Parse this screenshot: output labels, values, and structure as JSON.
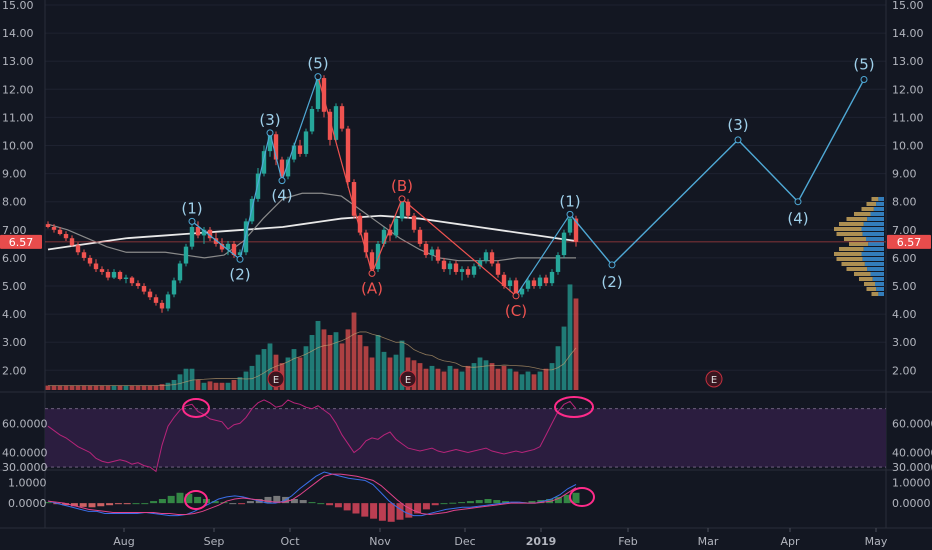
{
  "chart_data": {
    "type": "candlestick",
    "last_price": "6.57",
    "price_axis": {
      "ticks": [
        "15.00",
        "14.00",
        "13.00",
        "12.00",
        "11.00",
        "10.00",
        "9.00",
        "8.00",
        "7.00",
        "6.00",
        "5.00",
        "4.00",
        "3.00",
        "2.00"
      ],
      "range": [
        1.2,
        15
      ]
    },
    "time_axis": {
      "labels": [
        "Aug",
        "Sep",
        "Oct",
        "Nov",
        "Dec",
        "2019",
        "Feb",
        "Mar",
        "Apr",
        "May"
      ]
    },
    "candles": [
      {
        "o": 7.2,
        "h": 7.3,
        "l": 7.05,
        "c": 7.1
      },
      {
        "o": 7.1,
        "h": 7.2,
        "l": 6.9,
        "c": 7.0
      },
      {
        "o": 7.0,
        "h": 7.1,
        "l": 6.8,
        "c": 6.85
      },
      {
        "o": 6.85,
        "h": 6.95,
        "l": 6.6,
        "c": 6.7
      },
      {
        "o": 6.7,
        "h": 6.8,
        "l": 6.4,
        "c": 6.45
      },
      {
        "o": 6.45,
        "h": 6.55,
        "l": 6.1,
        "c": 6.2
      },
      {
        "o": 6.2,
        "h": 6.3,
        "l": 5.9,
        "c": 6.0
      },
      {
        "o": 6.0,
        "h": 6.1,
        "l": 5.7,
        "c": 5.8
      },
      {
        "o": 5.8,
        "h": 5.95,
        "l": 5.5,
        "c": 5.6
      },
      {
        "o": 5.6,
        "h": 5.7,
        "l": 5.4,
        "c": 5.5
      },
      {
        "o": 5.5,
        "h": 5.6,
        "l": 5.2,
        "c": 5.3
      },
      {
        "o": 5.3,
        "h": 5.6,
        "l": 5.25,
        "c": 5.5
      },
      {
        "o": 5.5,
        "h": 5.55,
        "l": 5.2,
        "c": 5.25
      },
      {
        "o": 5.25,
        "h": 5.4,
        "l": 5.1,
        "c": 5.3
      },
      {
        "o": 5.3,
        "h": 5.35,
        "l": 5.0,
        "c": 5.1
      },
      {
        "o": 5.1,
        "h": 5.2,
        "l": 4.9,
        "c": 5.0
      },
      {
        "o": 5.0,
        "h": 5.1,
        "l": 4.7,
        "c": 4.8
      },
      {
        "o": 4.8,
        "h": 4.9,
        "l": 4.5,
        "c": 4.6
      },
      {
        "o": 4.6,
        "h": 4.7,
        "l": 4.3,
        "c": 4.4
      },
      {
        "o": 4.4,
        "h": 4.5,
        "l": 4.05,
        "c": 4.2
      },
      {
        "o": 4.2,
        "h": 4.8,
        "l": 4.1,
        "c": 4.7
      },
      {
        "o": 4.7,
        "h": 5.3,
        "l": 4.6,
        "c": 5.2
      },
      {
        "o": 5.2,
        "h": 5.9,
        "l": 5.1,
        "c": 5.8
      },
      {
        "o": 5.8,
        "h": 6.5,
        "l": 5.7,
        "c": 6.4
      },
      {
        "o": 6.4,
        "h": 7.2,
        "l": 6.3,
        "c": 7.1
      },
      {
        "o": 7.1,
        "h": 7.3,
        "l": 6.7,
        "c": 6.8
      },
      {
        "o": 6.8,
        "h": 7.1,
        "l": 6.5,
        "c": 7.0
      },
      {
        "o": 7.0,
        "h": 7.1,
        "l": 6.6,
        "c": 6.7
      },
      {
        "o": 6.7,
        "h": 6.9,
        "l": 6.4,
        "c": 6.5
      },
      {
        "o": 6.5,
        "h": 6.7,
        "l": 6.2,
        "c": 6.3
      },
      {
        "o": 6.3,
        "h": 6.6,
        "l": 6.1,
        "c": 6.5
      },
      {
        "o": 6.5,
        "h": 6.6,
        "l": 6.0,
        "c": 6.1
      },
      {
        "o": 6.1,
        "h": 6.3,
        "l": 5.9,
        "c": 6.2
      },
      {
        "o": 6.2,
        "h": 7.4,
        "l": 6.1,
        "c": 7.3
      },
      {
        "o": 7.3,
        "h": 8.2,
        "l": 7.2,
        "c": 8.1
      },
      {
        "o": 8.1,
        "h": 9.2,
        "l": 8.0,
        "c": 9.0
      },
      {
        "o": 9.0,
        "h": 10.0,
        "l": 8.9,
        "c": 9.8
      },
      {
        "o": 9.8,
        "h": 10.5,
        "l": 9.6,
        "c": 10.4
      },
      {
        "o": 10.4,
        "h": 10.5,
        "l": 9.3,
        "c": 9.5
      },
      {
        "o": 9.5,
        "h": 9.6,
        "l": 8.7,
        "c": 8.9
      },
      {
        "o": 8.9,
        "h": 9.6,
        "l": 8.8,
        "c": 9.5
      },
      {
        "o": 9.5,
        "h": 10.1,
        "l": 9.4,
        "c": 10.0
      },
      {
        "o": 10.0,
        "h": 10.2,
        "l": 9.6,
        "c": 9.7
      },
      {
        "o": 9.7,
        "h": 10.6,
        "l": 9.6,
        "c": 10.5
      },
      {
        "o": 10.5,
        "h": 11.4,
        "l": 10.4,
        "c": 11.3
      },
      {
        "o": 11.3,
        "h": 12.5,
        "l": 11.2,
        "c": 12.4
      },
      {
        "o": 12.4,
        "h": 12.5,
        "l": 11.0,
        "c": 11.2
      },
      {
        "o": 11.2,
        "h": 11.3,
        "l": 10.0,
        "c": 10.2
      },
      {
        "o": 10.2,
        "h": 11.5,
        "l": 10.1,
        "c": 11.4
      },
      {
        "o": 11.4,
        "h": 11.5,
        "l": 10.5,
        "c": 10.6
      },
      {
        "o": 10.6,
        "h": 10.7,
        "l": 8.5,
        "c": 8.7
      },
      {
        "o": 8.7,
        "h": 8.8,
        "l": 7.4,
        "c": 7.5
      },
      {
        "o": 7.5,
        "h": 7.6,
        "l": 6.8,
        "c": 6.9
      },
      {
        "o": 6.9,
        "h": 7.0,
        "l": 6.0,
        "c": 6.2
      },
      {
        "o": 6.2,
        "h": 6.3,
        "l": 5.4,
        "c": 5.6
      },
      {
        "o": 5.6,
        "h": 6.6,
        "l": 5.5,
        "c": 6.5
      },
      {
        "o": 6.5,
        "h": 7.1,
        "l": 6.4,
        "c": 7.0
      },
      {
        "o": 7.0,
        "h": 7.2,
        "l": 6.6,
        "c": 6.8
      },
      {
        "o": 6.8,
        "h": 7.5,
        "l": 6.7,
        "c": 7.4
      },
      {
        "o": 7.4,
        "h": 8.1,
        "l": 7.3,
        "c": 8.0
      },
      {
        "o": 8.0,
        "h": 8.1,
        "l": 7.4,
        "c": 7.5
      },
      {
        "o": 7.5,
        "h": 7.6,
        "l": 6.9,
        "c": 7.0
      },
      {
        "o": 7.0,
        "h": 7.1,
        "l": 6.4,
        "c": 6.5
      },
      {
        "o": 6.5,
        "h": 6.6,
        "l": 6.0,
        "c": 6.1
      },
      {
        "o": 6.1,
        "h": 6.4,
        "l": 5.9,
        "c": 6.3
      },
      {
        "o": 6.3,
        "h": 6.4,
        "l": 5.8,
        "c": 5.9
      },
      {
        "o": 5.9,
        "h": 6.0,
        "l": 5.5,
        "c": 5.6
      },
      {
        "o": 5.6,
        "h": 5.9,
        "l": 5.4,
        "c": 5.8
      },
      {
        "o": 5.8,
        "h": 5.9,
        "l": 5.4,
        "c": 5.5
      },
      {
        "o": 5.5,
        "h": 5.7,
        "l": 5.2,
        "c": 5.6
      },
      {
        "o": 5.6,
        "h": 5.7,
        "l": 5.3,
        "c": 5.4
      },
      {
        "o": 5.4,
        "h": 5.8,
        "l": 5.3,
        "c": 5.7
      },
      {
        "o": 5.7,
        "h": 6.0,
        "l": 5.6,
        "c": 5.9
      },
      {
        "o": 5.9,
        "h": 6.3,
        "l": 5.8,
        "c": 6.2
      },
      {
        "o": 6.2,
        "h": 6.3,
        "l": 5.7,
        "c": 5.8
      },
      {
        "o": 5.8,
        "h": 5.9,
        "l": 5.3,
        "c": 5.4
      },
      {
        "o": 5.4,
        "h": 5.5,
        "l": 4.9,
        "c": 5.0
      },
      {
        "o": 5.0,
        "h": 5.3,
        "l": 4.8,
        "c": 5.2
      },
      {
        "o": 5.2,
        "h": 5.3,
        "l": 4.6,
        "c": 4.7
      },
      {
        "o": 4.7,
        "h": 5.0,
        "l": 4.6,
        "c": 4.9
      },
      {
        "o": 4.9,
        "h": 5.3,
        "l": 4.8,
        "c": 5.2
      },
      {
        "o": 5.2,
        "h": 5.3,
        "l": 4.9,
        "c": 5.0
      },
      {
        "o": 5.0,
        "h": 5.4,
        "l": 4.9,
        "c": 5.3
      },
      {
        "o": 5.3,
        "h": 5.4,
        "l": 5.0,
        "c": 5.1
      },
      {
        "o": 5.1,
        "h": 5.6,
        "l": 5.0,
        "c": 5.5
      },
      {
        "o": 5.5,
        "h": 6.2,
        "l": 5.4,
        "c": 6.1
      },
      {
        "o": 6.1,
        "h": 7.0,
        "l": 6.0,
        "c": 6.9
      },
      {
        "o": 6.9,
        "h": 7.6,
        "l": 6.8,
        "c": 7.4
      },
      {
        "o": 7.4,
        "h": 7.5,
        "l": 6.4,
        "c": 6.57
      }
    ],
    "volume": [
      1,
      1,
      1,
      1,
      1,
      1,
      1,
      1,
      1,
      1,
      1,
      1,
      1,
      1,
      1,
      1,
      1,
      1,
      1,
      1.05,
      1.1,
      1.2,
      1.4,
      1.6,
      1.6,
      1.2,
      1.1,
      1.15,
      1.1,
      1.1,
      1.1,
      1.2,
      1.3,
      1.5,
      1.7,
      2.1,
      2.3,
      2.5,
      2.1,
      1.8,
      2.0,
      2.3,
      2.0,
      2.4,
      2.8,
      3.3,
      3.0,
      2.8,
      2.9,
      2.5,
      3.0,
      3.6,
      2.8,
      2.4,
      2.0,
      2.8,
      2.2,
      2.0,
      2.1,
      2.6,
      2.0,
      1.9,
      1.8,
      1.6,
      1.7,
      1.6,
      1.5,
      1.7,
      1.6,
      1.5,
      1.7,
      1.8,
      2.0,
      1.9,
      1.8,
      1.6,
      1.7,
      1.6,
      1.5,
      1.4,
      1.5,
      1.4,
      1.5,
      1.6,
      1.8,
      2.4,
      3.1,
      4.6,
      4.1
    ],
    "moving_averages": [
      {
        "name": "white",
        "color": "#e8e8e8",
        "values": [
          6.3,
          6.4,
          6.5,
          6.6,
          6.7,
          6.75,
          6.8,
          6.85,
          6.9,
          6.95,
          7.0,
          7.05,
          7.1,
          7.2,
          7.3,
          7.4,
          7.45,
          7.5,
          7.45,
          7.4,
          7.3,
          7.2,
          7.1,
          7.0,
          6.9,
          6.8,
          6.7,
          6.6
        ]
      },
      {
        "name": "gray",
        "color": "#8a8a8a",
        "values": [
          7.2,
          7.0,
          6.7,
          6.4,
          6.2,
          6.2,
          6.2,
          6.1,
          6.0,
          6.1,
          6.6,
          7.4,
          8.1,
          8.3,
          8.3,
          8.2,
          7.7,
          7.2,
          6.7,
          6.3,
          6.0,
          5.9,
          5.9,
          5.9,
          6.0,
          6.0,
          6.0,
          6.0
        ]
      }
    ],
    "rsi": {
      "ticks": [
        "60.0000",
        "40.0000",
        "30.0000"
      ],
      "range": [
        28,
        78
      ],
      "upper": 70,
      "lower": 30,
      "values": [
        58,
        55,
        52,
        50,
        47,
        44,
        42,
        40,
        36,
        34,
        33,
        34,
        35,
        34,
        32,
        33,
        31,
        30,
        27,
        45,
        58,
        64,
        69,
        72,
        73,
        68,
        66,
        63,
        62,
        61,
        56,
        59,
        60,
        64,
        70,
        74,
        76,
        74,
        71,
        72,
        76,
        74,
        73,
        71,
        70,
        72,
        69,
        66,
        60,
        52,
        46,
        40,
        43,
        48,
        50,
        49,
        52,
        54,
        49,
        46,
        43,
        42,
        41,
        42,
        43,
        41,
        40,
        41,
        42,
        41,
        40,
        41,
        42,
        43,
        41,
        40,
        39,
        40,
        41,
        40,
        41,
        42,
        44,
        52,
        60,
        68,
        73,
        75,
        70
      ]
    },
    "macd": {
      "ticks": [
        "1.0000",
        "0.0000"
      ],
      "range": [
        -1.2,
        1.6
      ],
      "macd_line": [
        0.1,
        0.0,
        -0.1,
        -0.2,
        -0.3,
        -0.4,
        -0.4,
        -0.5,
        -0.5,
        -0.5,
        -0.5,
        -0.5,
        -0.45,
        -0.5,
        -0.55,
        -0.6,
        -0.6,
        -0.55,
        -0.4,
        -0.2,
        0.0,
        0.2,
        0.3,
        0.35,
        0.3,
        0.2,
        0.1,
        0.0,
        0.0,
        0.1,
        0.35,
        0.7,
        1.0,
        1.3,
        1.5,
        1.4,
        1.3,
        1.2,
        1.15,
        1.1,
        0.9,
        0.5,
        0.1,
        -0.2,
        -0.45,
        -0.6,
        -0.6,
        -0.5,
        -0.4,
        -0.3,
        -0.25,
        -0.2,
        -0.2,
        -0.15,
        -0.1,
        -0.05,
        0.0,
        0.05,
        0.05,
        0.0,
        0.0,
        0.1,
        0.2,
        0.4,
        0.7,
        0.9
      ],
      "signal_line": [
        0.1,
        0.05,
        0.0,
        -0.1,
        -0.2,
        -0.3,
        -0.35,
        -0.4,
        -0.45,
        -0.45,
        -0.45,
        -0.45,
        -0.45,
        -0.45,
        -0.5,
        -0.5,
        -0.55,
        -0.55,
        -0.5,
        -0.4,
        -0.25,
        -0.1,
        0.1,
        0.2,
        0.25,
        0.2,
        0.15,
        0.1,
        0.05,
        0.05,
        0.15,
        0.4,
        0.7,
        1.0,
        1.3,
        1.4,
        1.4,
        1.35,
        1.3,
        1.2,
        1.1,
        0.85,
        0.5,
        0.15,
        -0.15,
        -0.35,
        -0.5,
        -0.55,
        -0.5,
        -0.45,
        -0.35,
        -0.3,
        -0.25,
        -0.2,
        -0.15,
        -0.1,
        -0.05,
        0.0,
        0.0,
        0.0,
        0.0,
        0.05,
        0.1,
        0.25,
        0.5,
        0.75
      ],
      "histogram": [
        0.05,
        -0.05,
        -0.1,
        -0.15,
        -0.18,
        -0.2,
        -0.15,
        -0.1,
        -0.05,
        -0.05,
        0.0,
        0.0,
        0.1,
        0.2,
        0.35,
        0.5,
        0.45,
        0.3,
        0.2,
        0.1,
        0.05,
        0.0,
        -0.05,
        0.1,
        0.2,
        0.3,
        0.35,
        0.3,
        0.2,
        0.15,
        0.05,
        0.0,
        -0.1,
        -0.2,
        -0.35,
        -0.5,
        -0.65,
        -0.75,
        -0.85,
        -0.9,
        -0.8,
        -0.7,
        -0.5,
        -0.3,
        -0.1,
        0.0,
        0.02,
        0.05,
        0.1,
        0.15,
        0.2,
        0.15,
        0.1,
        0.05,
        0.05,
        0.1,
        0.15,
        0.2,
        0.3,
        0.4,
        0.5
      ]
    },
    "volume_profile": [
      0.25,
      0.35,
      0.45,
      0.6,
      0.75,
      0.9,
      1.0,
      0.95,
      0.8,
      0.7,
      0.9,
      1.0,
      0.95,
      0.85,
      0.75,
      0.6,
      0.5,
      0.4,
      0.35,
      0.25
    ],
    "elliott_waves": [
      {
        "label": "(1)",
        "series": "blue",
        "date_index": 24,
        "price": 7.3
      },
      {
        "label": "(2)",
        "series": "blue",
        "date_index": 32,
        "price": 5.95
      },
      {
        "label": "(3)",
        "series": "blue",
        "date_index": 37,
        "price": 10.45
      },
      {
        "label": "(4)",
        "series": "blue",
        "date_index": 39,
        "price": 8.75
      },
      {
        "label": "(5)",
        "series": "blue",
        "date_index": 45,
        "price": 12.45
      },
      {
        "label": "(A)",
        "series": "red",
        "date_index": 54,
        "price": 5.45
      },
      {
        "label": "(B)",
        "series": "red",
        "date_index": 59,
        "price": 8.1
      },
      {
        "label": "(C)",
        "series": "red",
        "date_index": 78,
        "price": 4.65
      },
      {
        "label": "(1)",
        "series": "blue",
        "date_index": 87,
        "price": 7.55
      }
    ],
    "projection": [
      {
        "label": "(2)",
        "date_index": 94,
        "price": 5.75
      },
      {
        "label": "(3)",
        "date_index": 115,
        "price": 10.2
      },
      {
        "label": "(4)",
        "date_index": 125,
        "price": 8.0
      },
      {
        "label": "(5)",
        "date_index": 136,
        "price": 12.35
      }
    ],
    "earnings_markers": [
      "E",
      "E",
      "E"
    ],
    "colors": {
      "background": "#131722",
      "up": "#26a69a",
      "down": "#ef5350",
      "wave_blue": "#4fa9d6",
      "wave_red": "#ef5350",
      "label_blue": "#9fd0ea",
      "rsi_line": "#b7247a",
      "rsi_band": "#2b1d3f",
      "macd_line": "#3a6ee8",
      "signal_line": "#e0428a",
      "highlight": "#ff2b8a",
      "last_price": "#e84c4c"
    }
  }
}
